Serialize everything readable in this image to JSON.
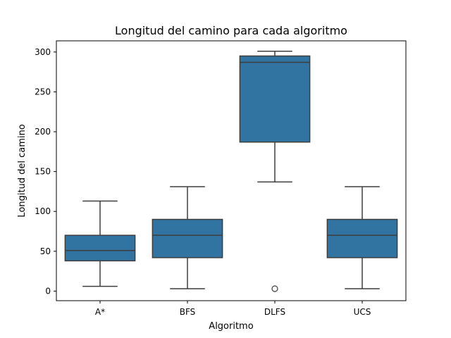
{
  "chart_data": {
    "type": "box",
    "title": "Longitud del camino para cada algoritmo",
    "xlabel": "Algoritmo",
    "ylabel": "Longitud del camino",
    "categories": [
      "A*",
      "BFS",
      "DLFS",
      "UCS"
    ],
    "ylim": [
      -12,
      314
    ],
    "yticks": [
      0,
      50,
      100,
      150,
      200,
      250,
      300
    ],
    "grid": false,
    "box_color": "#3274a1",
    "line_color": "#3d3d3d",
    "boxes": [
      {
        "category": "A*",
        "whisker_low": 6,
        "q1": 38,
        "median": 51,
        "q3": 70,
        "whisker_high": 113,
        "outliers": []
      },
      {
        "category": "BFS",
        "whisker_low": 3,
        "q1": 42,
        "median": 70,
        "q3": 90,
        "whisker_high": 131,
        "outliers": []
      },
      {
        "category": "DLFS",
        "whisker_low": 137,
        "q1": 187,
        "median": 287,
        "q3": 295,
        "whisker_high": 301,
        "outliers": [
          3
        ]
      },
      {
        "category": "UCS",
        "whisker_low": 3,
        "q1": 42,
        "median": 70,
        "q3": 90,
        "whisker_high": 131,
        "outliers": []
      }
    ]
  }
}
